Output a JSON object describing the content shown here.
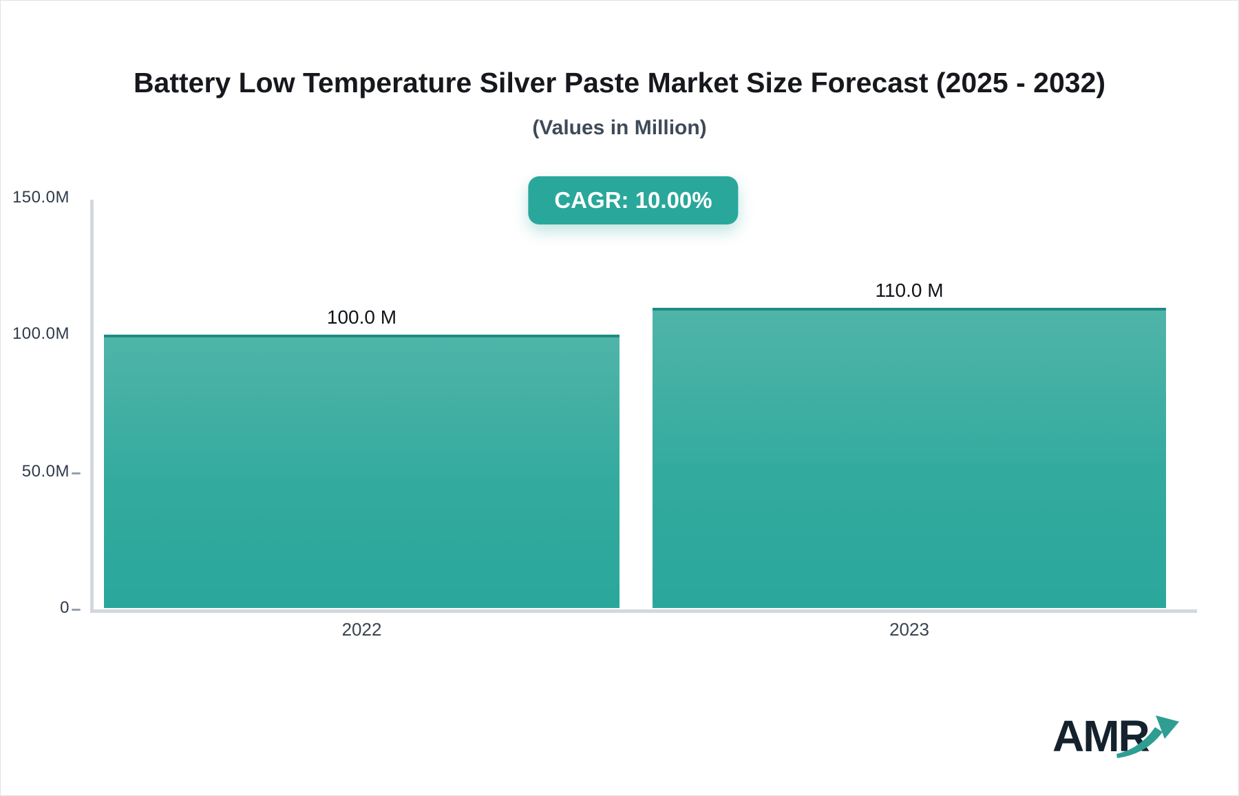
{
  "chart": {
    "logo_text": "AMR"
  },
  "chart_data": {
    "type": "bar",
    "title": "Battery Low Temperature Silver Paste Market Size Forecast (2025 - 2032)",
    "subtitle": "(Values in Million)",
    "cagr_label": "CAGR: 10.00%",
    "categories": [
      "2022",
      "2023"
    ],
    "values": [
      100.0,
      110.0
    ],
    "value_labels": [
      "100.0 M",
      "110.0 M"
    ],
    "ytick_labels": [
      "0",
      "50.0M",
      "100.0M",
      "150.0M"
    ],
    "ylim": [
      0,
      150
    ],
    "xlabel": "",
    "ylabel": "",
    "grid": false,
    "legend": false,
    "bar_color_top": "#50b4a9",
    "bar_color_bottom": "#2aa79b",
    "bar_stroke": "#1d8c83",
    "badge_color": "#2aa79b",
    "axis_color": "#d3d7de"
  }
}
